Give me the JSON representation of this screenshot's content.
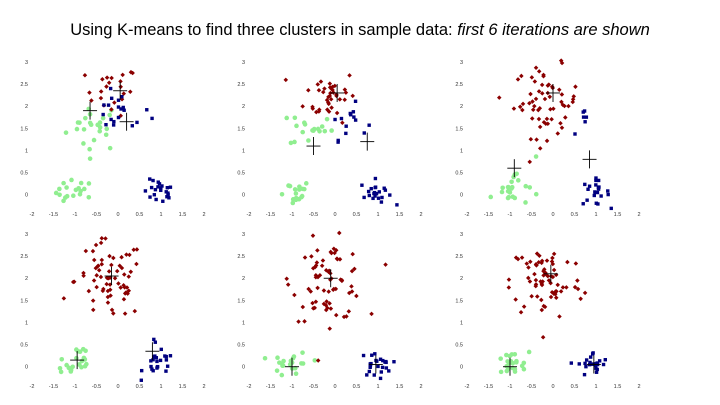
{
  "title": {
    "main": "Using K-means to find three clusters in sample data: ",
    "italic": "first 6 iterations are shown"
  },
  "colors": {
    "cluster_1": "#8b0000",
    "cluster_2": "#000080",
    "cluster_3": "#90ee90",
    "centroid_marker": "#000000"
  },
  "chart_data": [
    {
      "type": "scatter",
      "title": "",
      "xlim": [
        -2,
        2
      ],
      "ylim": [
        -0.3,
        3
      ],
      "x_ticks": [
        "-2",
        "-1.5",
        "-1",
        "-0.5",
        "0",
        "0.5",
        "1",
        "1.5",
        "2"
      ],
      "y_ticks": [
        "0",
        "0.5",
        "1",
        "1.5",
        "2",
        "2.5",
        "3"
      ],
      "series": [
        {
          "color": "#90ee90",
          "clusters": [
            [
              -0.55,
              1.55,
              0.32,
              0.28,
              24
            ],
            [
              -1.0,
              0.05,
              0.22,
              0.14,
              18
            ]
          ]
        },
        {
          "color": "#8b0000",
          "clusters": [
            [
              -0.15,
              2.35,
              0.3,
              0.28,
              22
            ]
          ]
        },
        {
          "color": "#000080",
          "clusters": [
            [
              0.05,
              1.85,
              0.35,
              0.22,
              20
            ],
            [
              0.95,
              0.05,
              0.18,
              0.14,
              22
            ]
          ]
        }
      ],
      "centroids": [
        [
          -0.65,
          1.9
        ],
        [
          0.05,
          2.35
        ],
        [
          0.2,
          1.65
        ]
      ]
    },
    {
      "type": "scatter",
      "title": "",
      "xlim": [
        -2,
        2
      ],
      "ylim": [
        -0.3,
        3
      ],
      "x_ticks": [
        "-2",
        "-1.5",
        "-1",
        "-0.5",
        "0",
        "0.5",
        "1",
        "1.5",
        "2"
      ],
      "y_ticks": [
        "0",
        "0.5",
        "1",
        "1.5",
        "2",
        "2.5",
        "3"
      ],
      "series": [
        {
          "color": "#90ee90",
          "clusters": [
            [
              -0.55,
              1.5,
              0.25,
              0.22,
              18
            ],
            [
              -1.0,
              0.05,
              0.22,
              0.14,
              18
            ]
          ]
        },
        {
          "color": "#8b0000",
          "clusters": [
            [
              -0.1,
              2.25,
              0.3,
              0.3,
              40
            ]
          ]
        },
        {
          "color": "#000080",
          "clusters": [
            [
              0.3,
              1.65,
              0.22,
              0.2,
              14
            ],
            [
              0.95,
              0.05,
              0.18,
              0.14,
              22
            ]
          ]
        }
      ],
      "centroids": [
        [
          -0.5,
          1.1
        ],
        [
          0.05,
          2.3
        ],
        [
          0.75,
          1.2
        ]
      ]
    },
    {
      "type": "scatter",
      "title": "",
      "xlim": [
        -2,
        2
      ],
      "ylim": [
        -0.3,
        3
      ],
      "x_ticks": [
        "-2",
        "-1.5",
        "-1",
        "-0.5",
        "0",
        "0.5",
        "1",
        "1.5",
        "2"
      ],
      "y_ticks": [
        "0",
        "0.5",
        "1",
        "1.5",
        "2",
        "2.5",
        "3"
      ],
      "series": [
        {
          "color": "#90ee90",
          "clusters": [
            [
              -1.0,
              0.05,
              0.22,
              0.14,
              18
            ],
            [
              -0.7,
              0.55,
              0.15,
              0.18,
              5
            ]
          ]
        },
        {
          "color": "#8b0000",
          "clusters": [
            [
              -0.15,
              2.1,
              0.38,
              0.4,
              62
            ]
          ]
        },
        {
          "color": "#000080",
          "clusters": [
            [
              0.95,
              0.05,
              0.18,
              0.14,
              22
            ],
            [
              0.75,
              1.65,
              0.12,
              0.15,
              6
            ]
          ]
        }
      ],
      "centroids": [
        [
          -0.9,
          0.6
        ],
        [
          0.0,
          2.3
        ],
        [
          0.85,
          0.8
        ]
      ]
    },
    {
      "type": "scatter",
      "title": "",
      "xlim": [
        -2,
        2
      ],
      "ylim": [
        -0.3,
        3
      ],
      "x_ticks": [
        "-2",
        "-1.5",
        "-1",
        "-0.5",
        "0",
        "0.5",
        "1",
        "1.5",
        "2"
      ],
      "y_ticks": [
        "0",
        "0.5",
        "1",
        "1.5",
        "2",
        "2.5",
        "3"
      ],
      "series": [
        {
          "color": "#90ee90",
          "clusters": [
            [
              -1.0,
              0.05,
              0.22,
              0.14,
              18
            ],
            [
              -0.9,
              0.35,
              0.12,
              0.12,
              5
            ]
          ]
        },
        {
          "color": "#8b0000",
          "clusters": [
            [
              -0.2,
              1.95,
              0.4,
              0.45,
              70
            ]
          ]
        },
        {
          "color": "#000080",
          "clusters": [
            [
              0.95,
              0.05,
              0.18,
              0.14,
              22
            ],
            [
              0.85,
              0.6,
              0.05,
              0.08,
              2
            ]
          ]
        }
      ],
      "centroids": [
        [
          -0.95,
          0.15
        ],
        [
          -0.15,
          2.05
        ],
        [
          0.8,
          0.35
        ]
      ]
    },
    {
      "type": "scatter",
      "title": "",
      "xlim": [
        -2,
        2
      ],
      "ylim": [
        -0.3,
        3
      ],
      "x_ticks": [
        "-2",
        "-1.5",
        "-1",
        "-0.5",
        "0",
        "0.5",
        "1",
        "1.5",
        "2"
      ],
      "y_ticks": [
        "0",
        "0.5",
        "1",
        "1.5",
        "2",
        "2.5",
        "3"
      ],
      "series": [
        {
          "color": "#90ee90",
          "clusters": [
            [
              -1.0,
              0.05,
              0.22,
              0.14,
              22
            ]
          ]
        },
        {
          "color": "#8b0000",
          "clusters": [
            [
              -0.15,
              1.95,
              0.42,
              0.45,
              72
            ]
          ]
        },
        {
          "color": "#000080",
          "clusters": [
            [
              0.95,
              0.05,
              0.18,
              0.14,
              24
            ]
          ]
        }
      ],
      "centroids": [
        [
          -1.0,
          0.0
        ],
        [
          -0.1,
          2.0
        ],
        [
          0.95,
          0.05
        ]
      ]
    },
    {
      "type": "scatter",
      "title": "",
      "xlim": [
        -2,
        2
      ],
      "ylim": [
        -0.3,
        3
      ],
      "x_ticks": [
        "-2",
        "-1.5",
        "-1",
        "-0.5",
        "0",
        "0.5",
        "1",
        "1.5",
        "2"
      ],
      "y_ticks": [
        "0",
        "0.5",
        "1",
        "1.5",
        "2",
        "2.5",
        "3"
      ],
      "series": [
        {
          "color": "#90ee90",
          "clusters": [
            [
              -1.0,
              0.05,
              0.22,
              0.14,
              22
            ]
          ]
        },
        {
          "color": "#8b0000",
          "clusters": [
            [
              -0.15,
              1.95,
              0.42,
              0.45,
              72
            ]
          ]
        },
        {
          "color": "#000080",
          "clusters": [
            [
              0.95,
              0.05,
              0.18,
              0.14,
              24
            ]
          ]
        }
      ],
      "centroids": [
        [
          -1.0,
          0.0
        ],
        [
          -0.05,
          2.1
        ],
        [
          0.95,
          0.05
        ]
      ]
    }
  ]
}
